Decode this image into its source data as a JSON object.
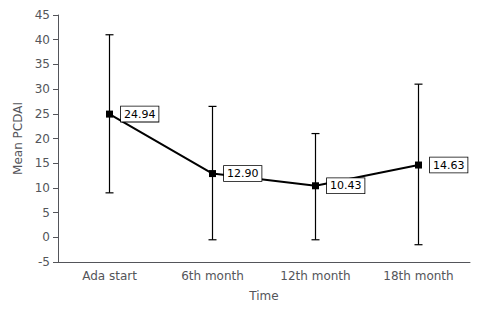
{
  "chart_data": {
    "type": "line",
    "categories": [
      "Ada start",
      "6th month",
      "12th month",
      "18th month"
    ],
    "values": [
      24.94,
      12.9,
      10.43,
      14.63
    ],
    "error_lower": [
      15.94,
      13.4,
      10.93,
      16.13
    ],
    "error_upper": [
      16.06,
      13.6,
      10.57,
      16.37
    ],
    "annotations": [
      "24.94",
      "12.90",
      "10.43",
      "14.63"
    ],
    "xlabel": "Time",
    "ylabel": "Mean PCDAI",
    "ylim": [
      -5,
      45
    ],
    "yticks": [
      -5,
      0,
      5,
      10,
      15,
      20,
      25,
      30,
      35,
      40,
      45
    ],
    "color": "#000000",
    "marker": "square",
    "grid": false
  }
}
